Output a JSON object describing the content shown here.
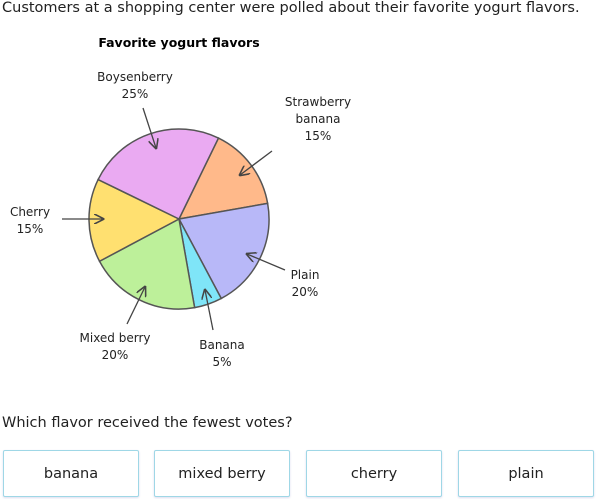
{
  "intro": "Customers at a shopping center were polled about their favorite yogurt flavors.",
  "chart_data": {
    "type": "pie",
    "title": "Favorite yogurt flavors",
    "categories": [
      "Strawberry banana",
      "Plain",
      "Banana",
      "Mixed berry",
      "Cherry",
      "Boysenberry"
    ],
    "values": [
      15,
      20,
      5,
      20,
      15,
      25
    ],
    "value_labels": [
      "15%",
      "20%",
      "5%",
      "20%",
      "15%",
      "25%"
    ],
    "colors": [
      "#ffb98a",
      "#b8b8f8",
      "#7fe5f8",
      "#bdf09a",
      "#ffe070",
      "#eaaaf2"
    ]
  },
  "question": "Which flavor received the fewest votes?",
  "choices": [
    "banana",
    "mixed berry",
    "cherry",
    "plain"
  ]
}
